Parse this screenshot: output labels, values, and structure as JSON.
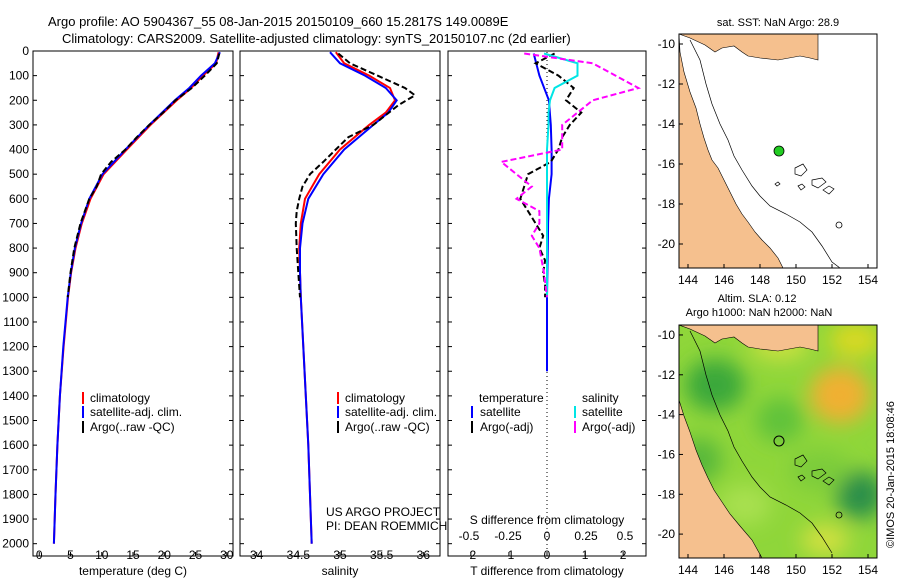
{
  "header": {
    "title_line1": "Argo profile: AO 5904367_55 08-Jan-2015 20150109_660 15.2817S 149.0089E",
    "title_line2": "Climatology: CARS2009. Satellite-adjusted climatology: synTS_20150107.nc (2d earlier)"
  },
  "colors": {
    "climatology": "#ff0000",
    "satellite": "#0000ff",
    "argo": "#000000",
    "sat_temp_diff": "#0000ff",
    "sat_sal_diff": "#00e5e5",
    "argo_sal_diff": "#ff00ff",
    "land": "#f5c08e",
    "float": "#22cc22"
  },
  "depth_axis": {
    "ticks": [
      "0",
      "100",
      "200",
      "300",
      "400",
      "500",
      "600",
      "700",
      "800",
      "900",
      "1000",
      "1100",
      "1200",
      "1300",
      "1400",
      "1500",
      "1600",
      "1700",
      "1800",
      "1900",
      "2000"
    ]
  },
  "legends": {
    "climatology": "climatology",
    "satellite_clim": "satellite-adj. clim.",
    "argo_raw": "Argo(..raw -QC)",
    "diff_temp_header": "temperature",
    "diff_sal_header": "salinity",
    "satellite": "satellite",
    "argo_adj": "Argo(-adj)"
  },
  "credits": {
    "project": "US ARGO PROJECT",
    "pi": "PI: DEAN ROEMMICH",
    "imos": "©IMOS 20-Jan-2015 18:08:46"
  },
  "maps": {
    "sst_title": "sat. SST: NaN Argo: 28.9",
    "sla_title1": "Altim. SLA: 0.12",
    "sla_title2": "Argo h1000: NaN h2000: NaN",
    "lon_ticks": [
      "144",
      "146",
      "148",
      "150",
      "152",
      "154"
    ],
    "lat_ticks": [
      "-10",
      "-12",
      "-14",
      "-16",
      "-18",
      "-20"
    ]
  },
  "chart_data": [
    {
      "type": "line",
      "title": "",
      "xlabel": "temperature (deg C)",
      "ylabel": "",
      "xlim": [
        -1,
        31
      ],
      "ylim": [
        2050,
        0
      ],
      "x_ticks": [
        "0",
        "5",
        "10",
        "15",
        "20",
        "25",
        "30"
      ],
      "series": [
        {
          "name": "climatology",
          "depth": [
            5,
            50,
            100,
            150,
            200,
            300,
            400,
            500,
            600,
            700,
            800,
            900,
            1000,
            1200,
            1400,
            1600,
            1800,
            2000
          ],
          "values": [
            28.7,
            28.3,
            26.2,
            24.3,
            22.0,
            17.8,
            14.0,
            10.3,
            8.2,
            6.8,
            5.8,
            5.1,
            4.6,
            3.9,
            3.3,
            2.9,
            2.6,
            2.35
          ]
        },
        {
          "name": "satellite-adj. clim.",
          "depth": [
            5,
            50,
            100,
            150,
            200,
            300,
            400,
            500,
            600,
            700,
            800,
            900,
            1000,
            1200,
            1400,
            1600,
            1800,
            2000
          ],
          "values": [
            28.9,
            28.1,
            25.9,
            24.0,
            21.7,
            17.6,
            13.8,
            10.1,
            8.0,
            6.7,
            5.7,
            5.05,
            4.55,
            3.85,
            3.3,
            2.9,
            2.6,
            2.35
          ]
        },
        {
          "name": "Argo(..raw -QC)",
          "depth": [
            10,
            50,
            100,
            150,
            200,
            250,
            300,
            350,
            400,
            450,
            500,
            550,
            600,
            700,
            800,
            900,
            1000
          ],
          "values": [
            28.8,
            28.4,
            26.5,
            24.4,
            21.8,
            19.8,
            17.6,
            15.6,
            13.8,
            11.5,
            9.9,
            9.2,
            8.0,
            6.6,
            5.6,
            5.0,
            4.55
          ]
        }
      ]
    },
    {
      "type": "line",
      "title": "",
      "xlabel": "salinity",
      "ylabel": "",
      "xlim": [
        33.8,
        36.2
      ],
      "ylim": [
        2050,
        0
      ],
      "x_ticks": [
        "34",
        "34.5",
        "35",
        "35.5",
        "36"
      ],
      "series": [
        {
          "name": "climatology",
          "depth": [
            5,
            50,
            100,
            150,
            200,
            250,
            300,
            400,
            500,
            600,
            700,
            800,
            900,
            1000,
            1200,
            1400,
            1600,
            1800,
            2000
          ],
          "values": [
            34.95,
            35.05,
            35.35,
            35.6,
            35.66,
            35.55,
            35.35,
            35.0,
            34.75,
            34.58,
            34.53,
            34.51,
            34.52,
            34.53,
            34.56,
            34.59,
            34.62,
            34.64,
            34.66
          ]
        },
        {
          "name": "satellite-adj. clim.",
          "depth": [
            5,
            50,
            100,
            150,
            200,
            250,
            300,
            400,
            500,
            600,
            700,
            800,
            900,
            1000,
            1200,
            1400,
            1600,
            1800,
            2000
          ],
          "values": [
            34.88,
            35.0,
            35.3,
            35.55,
            35.68,
            35.58,
            35.4,
            35.05,
            34.8,
            34.62,
            34.55,
            34.52,
            34.52,
            34.53,
            34.56,
            34.59,
            34.62,
            34.64,
            34.66
          ]
        },
        {
          "name": "Argo(..raw -QC)",
          "depth": [
            10,
            50,
            100,
            150,
            180,
            220,
            300,
            350,
            400,
            450,
            500,
            550,
            600,
            650,
            700,
            800,
            900,
            1000
          ],
          "values": [
            34.98,
            35.12,
            35.45,
            35.78,
            35.9,
            35.7,
            35.4,
            35.1,
            34.95,
            34.8,
            34.64,
            34.55,
            34.51,
            34.48,
            34.47,
            34.48,
            34.5,
            34.52
          ]
        }
      ]
    },
    {
      "type": "line",
      "title": "",
      "xlabel": "T difference from climatology",
      "xlabel_top": "S difference from climatology",
      "ylabel": "",
      "xlim": [
        -2.6,
        2.6
      ],
      "ylim": [
        2050,
        0
      ],
      "x_ticks": [
        "-2",
        "-1",
        "0",
        "1",
        "2"
      ],
      "x_ticks_top": [
        "-0.5",
        "-0.25",
        "0",
        "0.25",
        "0.5"
      ],
      "series": [
        {
          "name": "satellite (temperature)",
          "depth": [
            10,
            100,
            200,
            300,
            400,
            500,
            600,
            700,
            800,
            900,
            1000,
            1300
          ],
          "values": [
            -0.35,
            -0.2,
            0.05,
            0.1,
            0.12,
            0.12,
            0.05,
            0.03,
            0.02,
            0.01,
            0.0,
            0.0
          ]
        },
        {
          "name": "Argo(-adj) (temperature)",
          "depth": [
            10,
            50,
            100,
            150,
            200,
            250,
            300,
            350,
            400,
            450,
            500,
            550,
            600,
            650,
            700,
            750,
            800,
            850,
            900,
            950,
            1000
          ],
          "values": [
            0.2,
            -0.3,
            0.3,
            0.7,
            0.5,
            0.9,
            0.6,
            0.4,
            0.3,
            0.1,
            -0.5,
            -0.6,
            -0.7,
            -0.5,
            -0.3,
            -0.1,
            -0.2,
            -0.05,
            -0.1,
            -0.05,
            -0.05
          ]
        },
        {
          "name": "satellite (salinity)",
          "depth": [
            10,
            50,
            100,
            150,
            200,
            250,
            300,
            400,
            500,
            600,
            700,
            800,
            900,
            1000
          ],
          "values": [
            -0.02,
            0.2,
            0.2,
            0.05,
            0.02,
            0.01,
            0.01,
            0.0,
            0.0,
            0.0,
            0.0,
            0.0,
            0.0,
            0.0
          ]
        },
        {
          "name": "Argo(-adj) (salinity)",
          "depth": [
            10,
            50,
            100,
            150,
            200,
            250,
            300,
            400,
            450,
            500,
            550,
            600,
            650,
            700,
            750,
            800,
            900,
            1000
          ],
          "values": [
            -0.15,
            0.3,
            0.45,
            0.6,
            0.3,
            0.2,
            0.1,
            0.1,
            -0.3,
            -0.2,
            -0.1,
            -0.2,
            -0.05,
            -0.05,
            -0.1,
            -0.05,
            -0.02,
            0.0
          ]
        }
      ]
    },
    {
      "type": "map",
      "title": "sat. SST: NaN Argo: 28.9",
      "xlim": [
        143.5,
        154.5
      ],
      "ylim": [
        -21.2,
        -9.5
      ],
      "float_position": [
        149.0,
        -15.3
      ]
    },
    {
      "type": "heatmap",
      "title": "Altim. SLA: 0.12 / Argo h1000: NaN h2000: NaN",
      "xlim": [
        143.5,
        154.5
      ],
      "ylim": [
        -21.2,
        -9.5
      ],
      "float_position": [
        149.0,
        -15.3
      ]
    }
  ]
}
